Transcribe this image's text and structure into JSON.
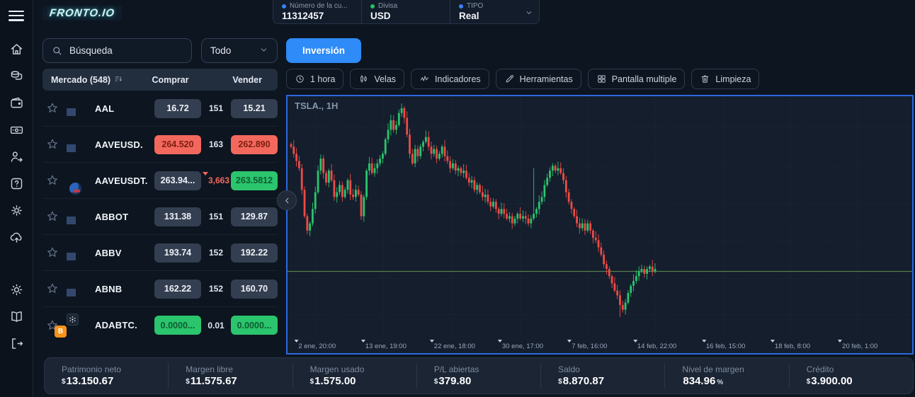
{
  "topbar": {
    "logo": "FRONTO.IO",
    "account": {
      "label": "Número de la cu...",
      "value": "11312457"
    },
    "currency": {
      "label": "Divisa",
      "value": "USD"
    },
    "type": {
      "label": "TIPO",
      "value": "Real"
    }
  },
  "sidebar": {
    "items": [
      {
        "name": "home"
      },
      {
        "name": "markets"
      },
      {
        "name": "wallet"
      },
      {
        "name": "payments"
      },
      {
        "name": "referral"
      },
      {
        "name": "support"
      },
      {
        "name": "settings"
      },
      {
        "name": "upload"
      },
      {
        "name": "theme",
        "group": 2
      },
      {
        "name": "education",
        "group": 2
      },
      {
        "name": "logout",
        "group": 2
      }
    ]
  },
  "watchlist": {
    "search_placeholder": "Búsqueda",
    "filter_value": "Todo",
    "invest_button_label": "Inversión",
    "header": {
      "market": "Mercado (548)",
      "buy": "Comprar",
      "sell": "Vender"
    },
    "rows": [
      {
        "symbol": "AAL",
        "icon": "us-flag",
        "buy": "16.72",
        "buy_state": "neutral",
        "spread": "151",
        "spread_state": "neutral",
        "sell": "15.21",
        "sell_state": "neutral"
      },
      {
        "symbol": "AAVEUSD.",
        "icon": "us-flag",
        "buy": "264.520",
        "buy_state": "down",
        "spread": "163",
        "spread_state": "neutral",
        "sell": "262.890",
        "sell_state": "down"
      },
      {
        "symbol": "AAVEUSDT.",
        "icon": "aave",
        "buy": "263.94...",
        "buy_state": "neutral",
        "spread": "3,663",
        "spread_state": "down",
        "sell": "263.5812",
        "sell_state": "up"
      },
      {
        "symbol": "ABBOT",
        "icon": "us-flag",
        "buy": "131.38",
        "buy_state": "neutral",
        "spread": "151",
        "spread_state": "neutral",
        "sell": "129.87",
        "sell_state": "neutral"
      },
      {
        "symbol": "ABBV",
        "icon": "us-flag",
        "buy": "193.74",
        "buy_state": "neutral",
        "spread": "152",
        "spread_state": "neutral",
        "sell": "192.22",
        "sell_state": "neutral"
      },
      {
        "symbol": "ABNB",
        "icon": "us-flag",
        "buy": "162.22",
        "buy_state": "neutral",
        "spread": "152",
        "spread_state": "neutral",
        "sell": "160.70",
        "sell_state": "neutral"
      },
      {
        "symbol": "ADABTC.",
        "icon": "ada-btc",
        "buy": "0.0000...",
        "buy_state": "up",
        "spread": "0.01",
        "spread_state": "neutral",
        "sell": "0.0000...",
        "sell_state": "up"
      }
    ]
  },
  "chart_toolbar": [
    {
      "icon": "clock",
      "label": "1 hora"
    },
    {
      "icon": "candles",
      "label": "Velas"
    },
    {
      "icon": "indicators",
      "label": "Indicadores"
    },
    {
      "icon": "tools",
      "label": "Herramientas"
    },
    {
      "icon": "multi-screen",
      "label": "Pantalla multiple"
    },
    {
      "icon": "trash",
      "label": "Limpieza"
    }
  ],
  "chart_data": {
    "type": "candlestick",
    "title": "TSLA., 1H",
    "symbol": "TSLA.",
    "timeframe": "1H",
    "y_axis_visible": false,
    "price_scale_note": "no price axis labels visible; values normalized 0-100 of plot height",
    "x_labels": [
      {
        "text": "2 ene, 20:00",
        "pos": 4.4
      },
      {
        "text": "13 ene, 19:00",
        "pos": 15.4
      },
      {
        "text": "22 ene, 18:00",
        "pos": 26.4
      },
      {
        "text": "30 ene, 17:00",
        "pos": 37.3
      },
      {
        "text": "7 feb, 16:00",
        "pos": 48.0
      },
      {
        "text": "14 feb, 22:00",
        "pos": 58.8
      },
      {
        "text": "16 feb, 15:00",
        "pos": 69.8
      },
      {
        "text": "18 feb, 8:00",
        "pos": 80.5
      },
      {
        "text": "20 feb, 1:00",
        "pos": 91.3
      }
    ],
    "current_price_line_level": 27,
    "h_gridline_levels": [
      87,
      71,
      55,
      40,
      24,
      9
    ],
    "closes": [
      79,
      76,
      73,
      70,
      61,
      50,
      44,
      47,
      53,
      60,
      69,
      74,
      68,
      64,
      69,
      65,
      58,
      60,
      63,
      58,
      61,
      65,
      59,
      58,
      61,
      59,
      50,
      58,
      69,
      72,
      68,
      70,
      72,
      74,
      76,
      82,
      86,
      90,
      86,
      88,
      93,
      95,
      91,
      84,
      76,
      72,
      78,
      75,
      79,
      81,
      83,
      79,
      76,
      78,
      74,
      76,
      79,
      75,
      73,
      70,
      72,
      69,
      70,
      68,
      69,
      66,
      64,
      65,
      61,
      63,
      60,
      58,
      59,
      56,
      54,
      56,
      53,
      51,
      53,
      51,
      49,
      50,
      47,
      49,
      51,
      49,
      50,
      49,
      47,
      49,
      51,
      53,
      56,
      58,
      63,
      66,
      69,
      71,
      69,
      70,
      68,
      65,
      60,
      56,
      53,
      50,
      47,
      45,
      47,
      44,
      47,
      44,
      41,
      40,
      37,
      34,
      30,
      28,
      25,
      22,
      19,
      17,
      13,
      11,
      14,
      18,
      21,
      23,
      25,
      27,
      28,
      26,
      28,
      29,
      27,
      28
    ],
    "wick_overrides": [
      {
        "i": 41,
        "h": 97
      },
      {
        "i": 90,
        "h": 70
      },
      {
        "i": 122,
        "l": 8
      }
    ],
    "up_color": "#2bc56d",
    "down_color": "#ef4b46",
    "price_line_color": "#5f8a4e",
    "grid_color": "rgba(148,163,190,0.13)"
  },
  "footer": {
    "stats": [
      {
        "label": "Patrimonio neto",
        "prefix": "$",
        "value": "13.150.67",
        "suffix": ""
      },
      {
        "label": "Margen libre",
        "prefix": "$",
        "value": "11.575.67",
        "suffix": ""
      },
      {
        "label": "Margen usado",
        "prefix": "$",
        "value": "1.575.00",
        "suffix": ""
      },
      {
        "label": "P/L abiertas",
        "prefix": "$",
        "value": "379.80",
        "suffix": ""
      },
      {
        "label": "Saldo",
        "prefix": "$",
        "value": "8.870.87",
        "suffix": ""
      },
      {
        "label": "Nivel de margen",
        "prefix": "",
        "value": "834.96",
        "suffix": "%"
      },
      {
        "label": "Crédito",
        "prefix": "$",
        "value": "3.900.00",
        "suffix": ""
      }
    ]
  },
  "colors": {
    "accent": "#2e8bf7",
    "chart_border": "#2d68e0",
    "pill_neutral": "#333e50",
    "pill_down": "#f3685d",
    "pill_up": "#2bc56d",
    "background": "#0d1520"
  }
}
